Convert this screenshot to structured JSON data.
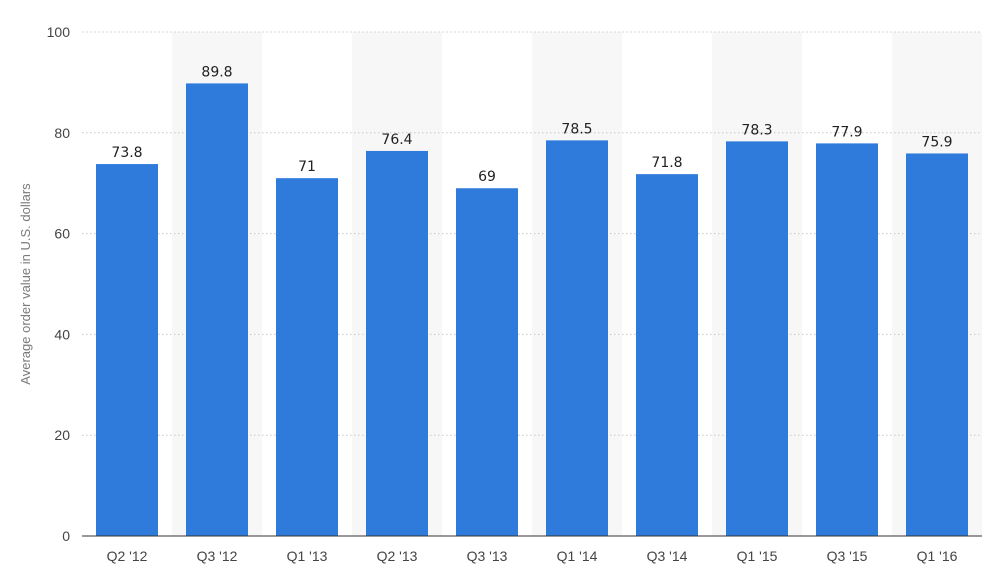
{
  "chart_data": {
    "type": "bar",
    "ylabel": "Average order value in U.S. dollars",
    "ylim": [
      0,
      100
    ],
    "yticks": [
      0,
      20,
      40,
      60,
      80,
      100
    ],
    "grid": true,
    "categories": [
      "Q2 '12",
      "Q3 '12",
      "Q1 '13",
      "Q2 '13",
      "Q3 '13",
      "Q1 '14",
      "Q3 '14",
      "Q1 '15",
      "Q3 '15",
      "Q1 '16"
    ],
    "values": [
      73.8,
      89.8,
      71,
      76.4,
      69,
      78.5,
      71.8,
      78.3,
      77.9,
      75.9
    ],
    "data_labels": [
      "73.8",
      "89.8",
      "71",
      "76.4",
      "69",
      "78.5",
      "71.8",
      "78.3",
      "77.9",
      "75.9"
    ],
    "colors": {
      "bar": "#2f7bdc",
      "band": "#f7f7f7",
      "grid": "#c8c8c8",
      "axis": "#333333"
    }
  }
}
